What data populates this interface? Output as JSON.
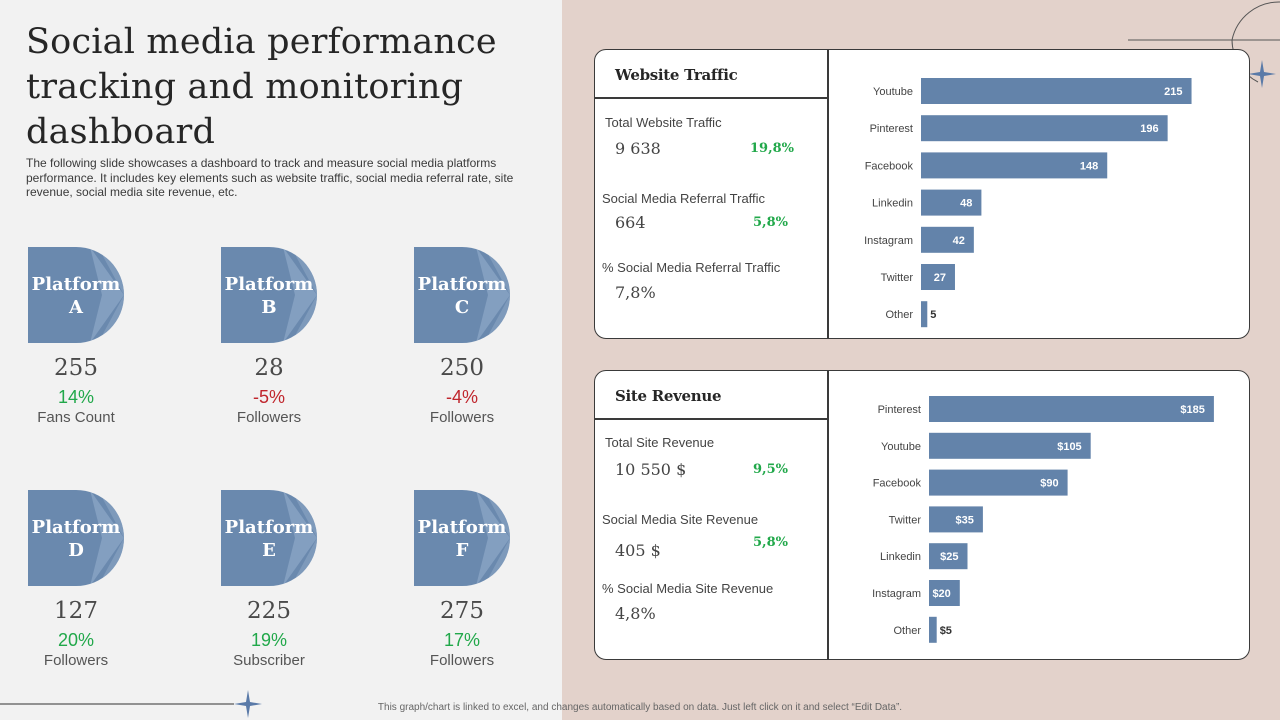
{
  "title": "Social media performance tracking and monitoring dashboard",
  "description": "The following slide showcases a dashboard to track and measure social media platforms performance. It includes key elements such as website traffic, social media referral rate, site revenue, social media site revenue, etc.",
  "platforms": [
    {
      "name": "Platform\nA",
      "line1": "Platform",
      "line2": "A",
      "value": "255",
      "change": "14%",
      "change_sign": "pos",
      "caption": "Fans Count"
    },
    {
      "name": "Platform\nB",
      "line1": "Platform",
      "line2": "B",
      "value": "28",
      "change": "-5%",
      "change_sign": "neg",
      "caption": "Followers"
    },
    {
      "name": "Platform\nC",
      "line1": "Platform",
      "line2": "C",
      "value": "250",
      "change": "-4%",
      "change_sign": "neg",
      "caption": "Followers"
    },
    {
      "name": "Platform\nD",
      "line1": "Platform",
      "line2": "D",
      "value": "127",
      "change": "20%",
      "change_sign": "pos",
      "caption": "Followers"
    },
    {
      "name": "Platform\nE",
      "line1": "Platform",
      "line2": "E",
      "value": "225",
      "change": "19%",
      "change_sign": "pos",
      "caption": "Subscriber"
    },
    {
      "name": "Platform\nF",
      "line1": "Platform",
      "line2": "F",
      "value": "275",
      "change": "17%",
      "change_sign": "pos",
      "caption": "Followers"
    }
  ],
  "website_traffic": {
    "title": "Website Traffic",
    "metrics": [
      {
        "label": "Total Website Traffic",
        "value": "9 638",
        "pct": "19,8%"
      },
      {
        "label": "Social Media Referral  Traffic",
        "value": "664",
        "pct": "5,8%"
      },
      {
        "label": "% Social Media Referral  Traffic",
        "value": "7,8%",
        "pct": ""
      }
    ]
  },
  "site_revenue": {
    "title": "Site Revenue",
    "metrics": [
      {
        "label": "Total Site Revenue",
        "value": "10 550 $",
        "pct": "9,5%"
      },
      {
        "label": "Social Media Site Revenue",
        "value": "405 $",
        "pct": "5,8%"
      },
      {
        "label": "% Social Media Site Revenue",
        "value": "4,8%",
        "pct": ""
      }
    ]
  },
  "chart_data": [
    {
      "type": "bar",
      "orientation": "horizontal",
      "categories": [
        "Youtube",
        "Pinterest",
        "Facebook",
        "Linkedin",
        "Instagram",
        "Twitter",
        "Other"
      ],
      "values": [
        215,
        196,
        148,
        48,
        42,
        27,
        5
      ],
      "value_labels": [
        "215",
        "196",
        "148",
        "48",
        "42",
        "27",
        "5"
      ],
      "color": "#6383aa",
      "xlim": [
        0,
        240
      ]
    },
    {
      "type": "bar",
      "orientation": "horizontal",
      "categories": [
        "Pinterest",
        "Youtube",
        "Facebook",
        "Twitter",
        "Linkedin",
        "Instagram",
        "Other"
      ],
      "values": [
        185,
        105,
        90,
        35,
        25,
        20,
        5
      ],
      "value_labels": [
        "$185",
        "$105",
        "$90",
        "$35",
        "$25",
        "$20",
        "$5"
      ],
      "color": "#6383aa",
      "xlim": [
        0,
        200
      ]
    }
  ],
  "footer_note": "This graph/chart is linked to excel, and changes automatically based on data. Just left click on it and select “Edit Data”.",
  "colors": {
    "accent": "#6a89ae",
    "positive": "#21a84a",
    "negative": "#c0262d",
    "right_background": "#e3d2cb"
  }
}
